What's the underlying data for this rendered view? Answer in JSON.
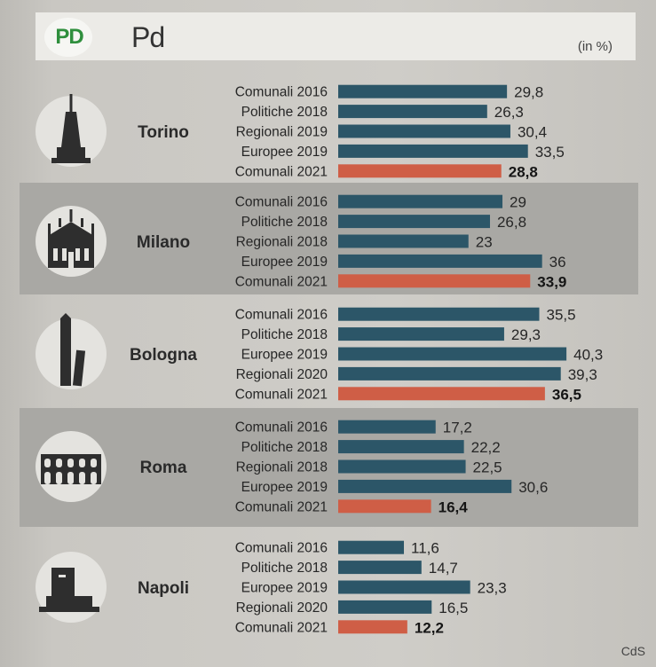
{
  "header": {
    "logo_text": "PD",
    "title": "Pd",
    "unit": "(in %)"
  },
  "credit": "CdS",
  "colors": {
    "normal_bar": "#2c5668",
    "latest_bar": "#cf5e46",
    "band_dark": "#a9a8a4",
    "icon": "#2e2e2e",
    "icon_disc": "#e4e3df"
  },
  "chart_data": {
    "type": "bar",
    "orientation": "horizontal",
    "title": "Pd",
    "unit": "(in %)",
    "groups": [
      {
        "city": "Torino",
        "icon": "mole-antonelliana-icon",
        "categories": [
          "Comunali 2016",
          "Politiche 2018",
          "Regionali 2019",
          "Europee 2019",
          "Comunali 2021"
        ],
        "values": [
          29.8,
          26.3,
          30.4,
          33.5,
          28.8
        ],
        "labels": [
          "29,8",
          "26,3",
          "30,4",
          "33,5",
          "28,8"
        ]
      },
      {
        "city": "Milano",
        "icon": "duomo-icon",
        "categories": [
          "Comunali 2016",
          "Politiche 2018",
          "Regionali 2018",
          "Europee 2019",
          "Comunali 2021"
        ],
        "values": [
          29,
          26.8,
          23,
          36,
          33.9
        ],
        "labels": [
          "29",
          "26,8",
          "23",
          "36",
          "33,9"
        ]
      },
      {
        "city": "Bologna",
        "icon": "two-towers-icon",
        "categories": [
          "Comunali 2016",
          "Politiche 2018",
          "Europee 2019",
          "Regionali 2020",
          "Comunali 2021"
        ],
        "values": [
          35.5,
          29.3,
          40.3,
          39.3,
          36.5
        ],
        "labels": [
          "35,5",
          "29,3",
          "40,3",
          "39,3",
          "36,5"
        ]
      },
      {
        "city": "Roma",
        "icon": "colosseum-icon",
        "categories": [
          "Comunali 2016",
          "Politiche 2018",
          "Regionali 2018",
          "Europee 2019",
          "Comunali 2021"
        ],
        "values": [
          17.2,
          22.2,
          22.5,
          30.6,
          16.4
        ],
        "labels": [
          "17,2",
          "22,2",
          "22,5",
          "30,6",
          "16,4"
        ]
      },
      {
        "city": "Napoli",
        "icon": "maschio-angioino-icon",
        "categories": [
          "Comunali 2016",
          "Politiche 2018",
          "Europee 2019",
          "Regionali 2020",
          "Comunali 2021"
        ],
        "values": [
          11.6,
          14.7,
          23.3,
          16.5,
          12.2
        ],
        "labels": [
          "11,6",
          "14,7",
          "23,3",
          "16,5",
          "12,2"
        ]
      }
    ],
    "xlim": [
      0,
      45
    ],
    "grid": false,
    "legend": "none"
  }
}
